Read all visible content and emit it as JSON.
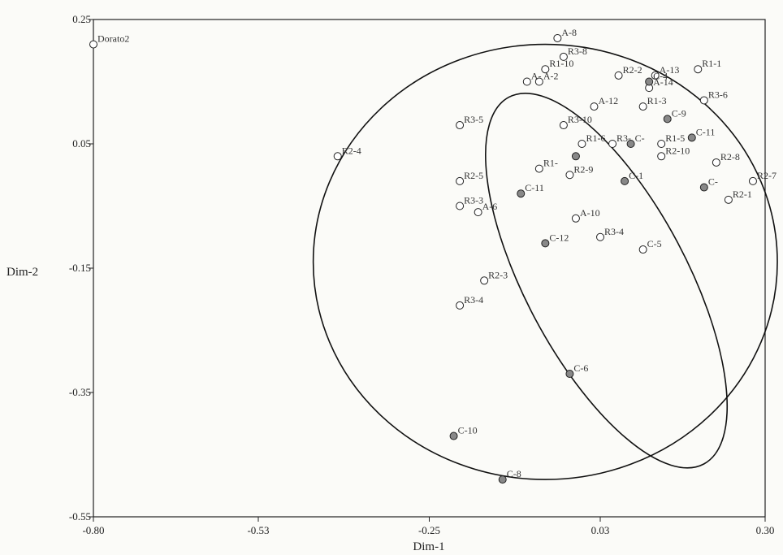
{
  "chart_data": {
    "type": "scatter",
    "xlabel": "Dim-1",
    "ylabel": "Dim-2",
    "xlim": [
      -0.8,
      0.3
    ],
    "ylim": [
      -0.55,
      0.25
    ],
    "x_ticks": [
      "-0.80",
      "-0.53",
      "-0.25",
      "0.03",
      "0.30"
    ],
    "x_tick_values": [
      -0.8,
      -0.53,
      -0.25,
      0.03,
      0.3
    ],
    "y_ticks": [
      "0.25",
      "0.05",
      "-0.15",
      "-0.35",
      "-0.55"
    ],
    "y_tick_values": [
      0.25,
      0.05,
      -0.15,
      -0.35,
      -0.55
    ],
    "colors": {
      "open_fill": "#ffffff",
      "filled_fill": "#888888",
      "stroke": "#222222"
    },
    "open_points": [
      {
        "label": "Dorato2",
        "x": -0.8,
        "y": 0.21
      },
      {
        "label": "A-8",
        "x": -0.04,
        "y": 0.22
      },
      {
        "label": "R3-8",
        "x": -0.03,
        "y": 0.19
      },
      {
        "label": "R1-10",
        "x": -0.06,
        "y": 0.17
      },
      {
        "label": "A-2",
        "x": -0.07,
        "y": 0.15
      },
      {
        "label": "A-",
        "x": -0.09,
        "y": 0.15
      },
      {
        "label": "R2-2",
        "x": 0.06,
        "y": 0.16
      },
      {
        "label": "A-13",
        "x": 0.12,
        "y": 0.16
      },
      {
        "label": "R1-1",
        "x": 0.19,
        "y": 0.17
      },
      {
        "label": "A-14",
        "x": 0.11,
        "y": 0.14
      },
      {
        "label": "R1-3",
        "x": 0.1,
        "y": 0.11
      },
      {
        "label": "R3-6",
        "x": 0.2,
        "y": 0.12
      },
      {
        "label": "A-12",
        "x": 0.02,
        "y": 0.11
      },
      {
        "label": "R3-10",
        "x": -0.03,
        "y": 0.08
      },
      {
        "label": "R3-5",
        "x": -0.2,
        "y": 0.08
      },
      {
        "label": "R1-6",
        "x": 0.0,
        "y": 0.05
      },
      {
        "label": "R1-5",
        "x": 0.13,
        "y": 0.05
      },
      {
        "label": "R3-",
        "x": 0.05,
        "y": 0.05
      },
      {
        "label": "R2-10",
        "x": 0.13,
        "y": 0.03
      },
      {
        "label": "R2-4",
        "x": -0.4,
        "y": 0.03
      },
      {
        "label": "R1-",
        "x": -0.07,
        "y": 0.01
      },
      {
        "label": "R2-9",
        "x": -0.02,
        "y": 0.0
      },
      {
        "label": "R2-8",
        "x": 0.22,
        "y": 0.02
      },
      {
        "label": "R2-7",
        "x": 0.28,
        "y": -0.01
      },
      {
        "label": "R2-1",
        "x": 0.24,
        "y": -0.04
      },
      {
        "label": "R2-5",
        "x": -0.2,
        "y": -0.01
      },
      {
        "label": "R3-3",
        "x": -0.2,
        "y": -0.05
      },
      {
        "label": "A-6",
        "x": -0.17,
        "y": -0.06
      },
      {
        "label": "A-10",
        "x": -0.01,
        "y": -0.07
      },
      {
        "label": "R3-4",
        "x": 0.03,
        "y": -0.1
      },
      {
        "label": "C-5",
        "x": 0.1,
        "y": -0.12
      },
      {
        "label": "R2-3",
        "x": -0.16,
        "y": -0.17
      },
      {
        "label": "R3-4",
        "x": -0.2,
        "y": -0.21
      }
    ],
    "filled_points": [
      {
        "label": "C-4",
        "x": 0.11,
        "y": 0.15
      },
      {
        "label": "C-9",
        "x": 0.14,
        "y": 0.09
      },
      {
        "label": "C-11",
        "x": 0.18,
        "y": 0.06
      },
      {
        "label": "C-",
        "x": 0.08,
        "y": 0.05
      },
      {
        "label": "",
        "x": -0.01,
        "y": 0.03
      },
      {
        "label": "C-1",
        "x": 0.07,
        "y": -0.01
      },
      {
        "label": "C-",
        "x": 0.2,
        "y": -0.02
      },
      {
        "label": "C-11",
        "x": -0.1,
        "y": -0.03
      },
      {
        "label": "C-12",
        "x": -0.06,
        "y": -0.11
      },
      {
        "label": "C-6",
        "x": -0.02,
        "y": -0.32
      },
      {
        "label": "C-10",
        "x": -0.21,
        "y": -0.42
      },
      {
        "label": "C-8",
        "x": -0.13,
        "y": -0.49
      }
    ],
    "ellipses": [
      {
        "cx": -0.06,
        "cy": -0.14,
        "rx": 0.38,
        "ry": 0.35,
        "angle": 0
      },
      {
        "cx": 0.04,
        "cy": -0.17,
        "rx": 0.34,
        "ry": 0.13,
        "angle": 62
      }
    ]
  }
}
